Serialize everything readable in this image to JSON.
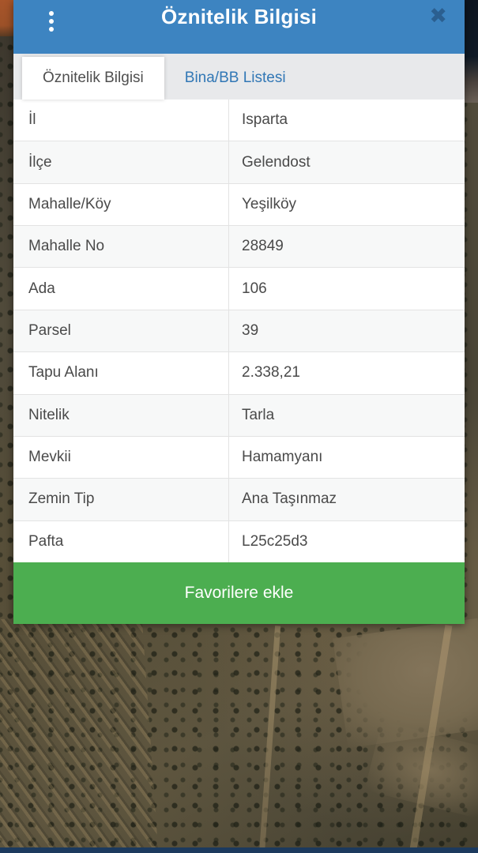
{
  "header": {
    "title": "Öznitelik Bilgisi",
    "close_glyph": "✖",
    "menu_icon": "kebab-vertical-icon"
  },
  "tabs": [
    {
      "label": "Öznitelik Bilgisi",
      "active": true
    },
    {
      "label": "Bina/BB Listesi",
      "active": false
    }
  ],
  "table": {
    "rows": [
      {
        "label": "İl",
        "value": "Isparta"
      },
      {
        "label": "İlçe",
        "value": "Gelendost"
      },
      {
        "label": "Mahalle/Köy",
        "value": "Yeşilköy"
      },
      {
        "label": "Mahalle No",
        "value": "28849"
      },
      {
        "label": "Ada",
        "value": "106"
      },
      {
        "label": "Parsel",
        "value": "39"
      },
      {
        "label": "Tapu Alanı",
        "value": "2.338,21"
      },
      {
        "label": "Nitelik",
        "value": "Tarla"
      },
      {
        "label": "Mevkii",
        "value": "Hamamyanı"
      },
      {
        "label": "Zemin Tip",
        "value": "Ana Taşınmaz"
      },
      {
        "label": "Pafta",
        "value": "L25c25d3"
      }
    ]
  },
  "favorite_button": {
    "label": "Favorilere ekle"
  },
  "colors": {
    "header_blue": "#3d84c1",
    "close_icon_blue": "#2b5f90",
    "tabbar_gray": "#e8e9eb",
    "inactive_tab_blue": "#3177b5",
    "button_green": "#4cae50",
    "bottom_bar_navy": "#1c3a5e",
    "row_alt_gray": "#f7f8f8"
  }
}
